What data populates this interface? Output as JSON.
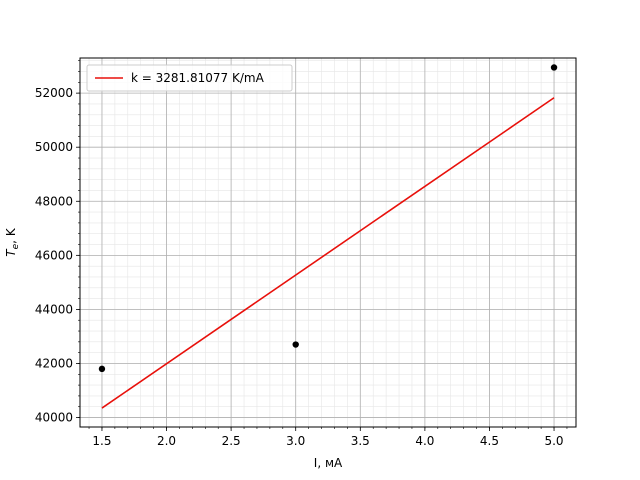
{
  "chart_data": {
    "type": "scatter",
    "title": "",
    "xlabel": "I, мА",
    "ylabel_main": "T",
    "ylabel_sub": "e",
    "ylabel_rest": ", K",
    "xlim": [
      1.33,
      5.17
    ],
    "ylim": [
      39650,
      53300
    ],
    "x_ticks": [
      1.5,
      2.0,
      2.5,
      3.0,
      3.5,
      4.0,
      4.5,
      5.0
    ],
    "x_tick_labels": [
      "1.5",
      "2.0",
      "2.5",
      "3.0",
      "3.5",
      "4.0",
      "4.5",
      "5.0"
    ],
    "y_ticks": [
      40000,
      42000,
      44000,
      46000,
      48000,
      50000,
      52000
    ],
    "y_tick_labels": [
      "40000",
      "42000",
      "44000",
      "46000",
      "48000",
      "50000",
      "52000"
    ],
    "x_minor_step": 0.1,
    "y_minor_step": 400,
    "grid": true,
    "legend_position": "top-left",
    "series": [
      {
        "kind": "points",
        "color": "#000000",
        "x": [
          1.5,
          3.0,
          5.0
        ],
        "y": [
          41800,
          42700,
          52950
        ]
      },
      {
        "kind": "line",
        "name": "k = 3281.81077 K/mA",
        "color": "#e8100b",
        "x": [
          1.5,
          5.0
        ],
        "y": [
          40350,
          51830
        ]
      }
    ]
  }
}
